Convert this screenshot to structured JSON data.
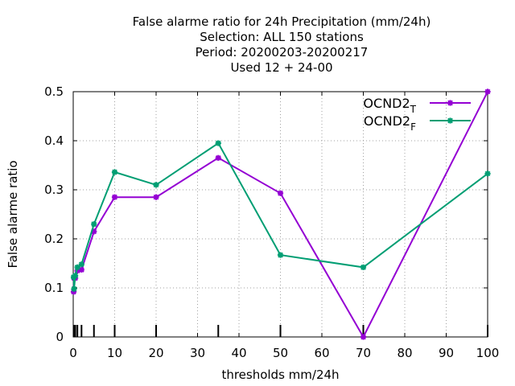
{
  "chart_data": {
    "type": "line",
    "title_lines": [
      "False alarme ratio  for 24h Precipitation (mm/24h)",
      "Selection: ALL    150 stations",
      "Period: 20200203-20200217",
      "Used  12 + 24-00"
    ],
    "xlabel": "thresholds mm/24h",
    "ylabel": "False alarme ratio",
    "xlim": [
      0,
      100
    ],
    "ylim": [
      0,
      0.5
    ],
    "xticks": [
      0,
      10,
      20,
      30,
      40,
      50,
      60,
      70,
      80,
      90,
      100
    ],
    "yticks": [
      0,
      0.1,
      0.2,
      0.3,
      0.4,
      0.5
    ],
    "grid": true,
    "legend_position": "top-right",
    "threshold_marks": [
      0.1,
      0.2,
      0.5,
      1,
      2,
      5,
      10,
      20,
      35,
      50,
      70,
      100
    ],
    "series": [
      {
        "name": "OCND2",
        "subscript": "T",
        "color": "#9400d3",
        "x": [
          0.1,
          0.2,
          0.5,
          1,
          2,
          5,
          10,
          20,
          35,
          50,
          70,
          100
        ],
        "y": [
          0.092,
          0.12,
          0.12,
          0.135,
          0.137,
          0.215,
          0.285,
          0.285,
          0.365,
          0.293,
          0.0,
          0.5
        ]
      },
      {
        "name": "OCND2",
        "subscript": "F",
        "color": "#009e73",
        "x": [
          0.1,
          0.2,
          0.5,
          1,
          2,
          5,
          10,
          20,
          35,
          50,
          70,
          100
        ],
        "y": [
          0.122,
          0.098,
          0.125,
          0.142,
          0.148,
          0.23,
          0.336,
          0.31,
          0.395,
          0.167,
          0.142,
          0.333
        ]
      }
    ]
  }
}
